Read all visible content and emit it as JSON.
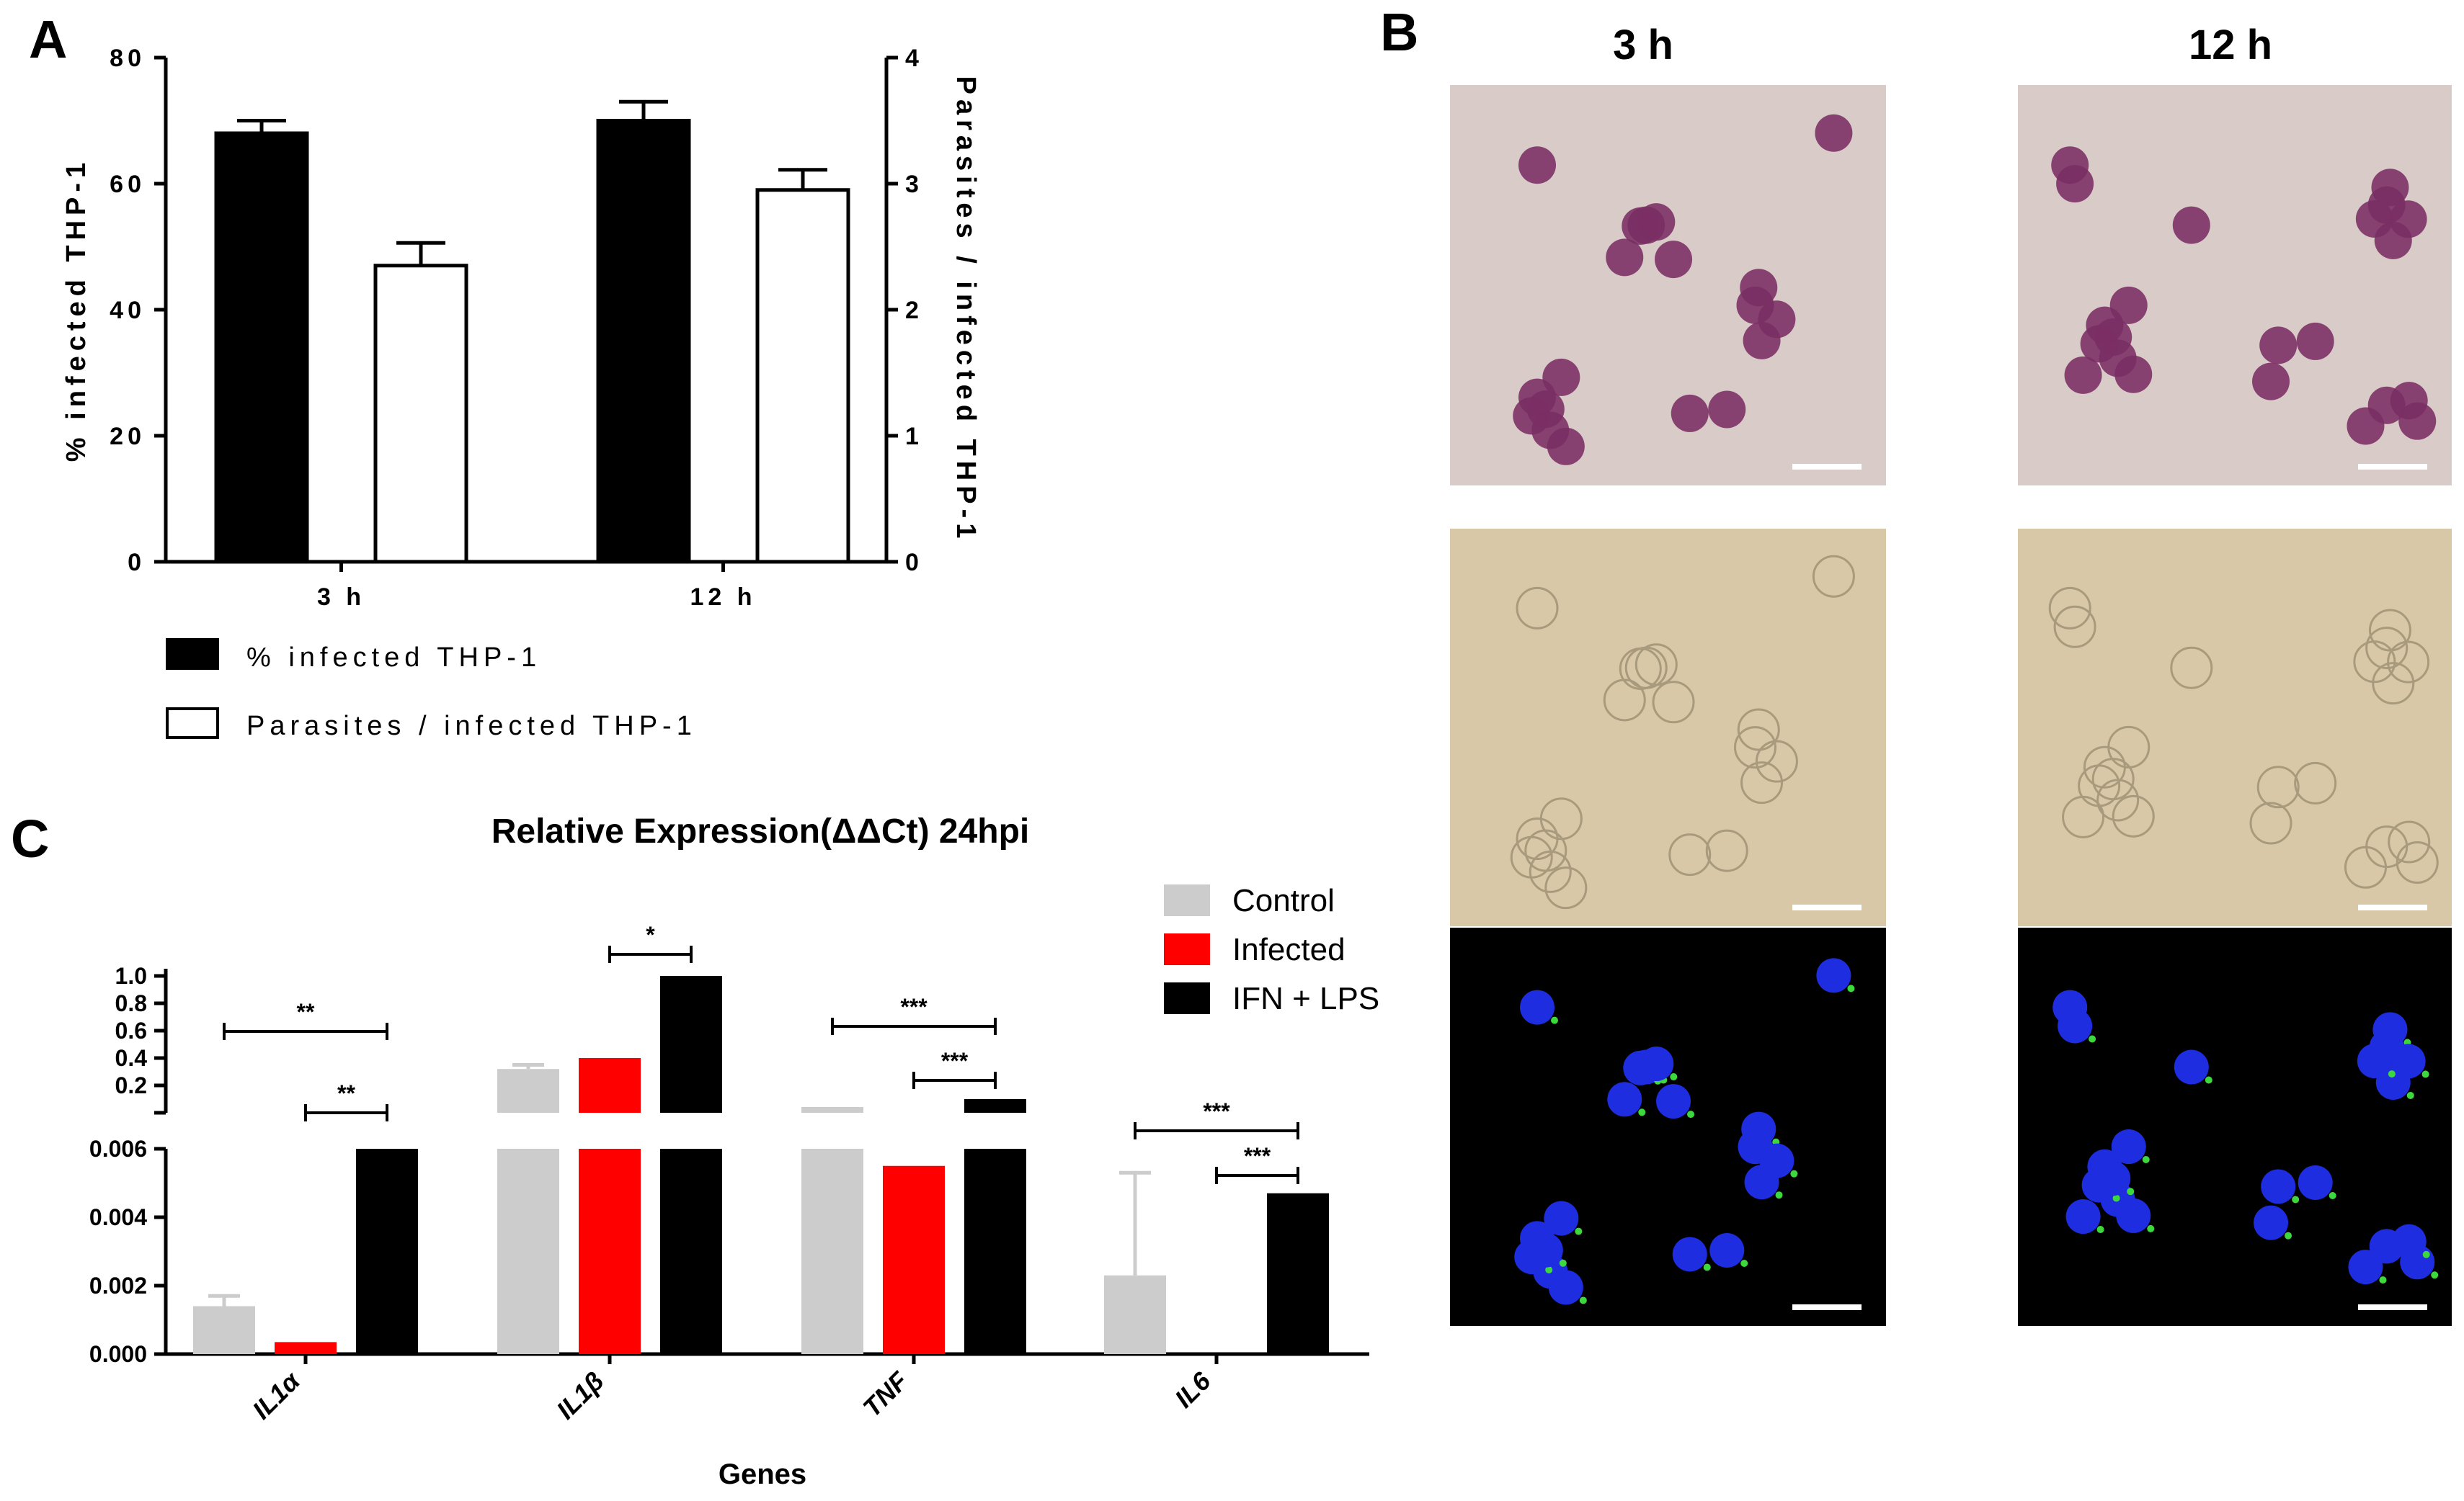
{
  "figure": {
    "panel_labels": [
      "A",
      "B",
      "C"
    ]
  },
  "colors": {
    "black": "#000000",
    "white": "#ffffff",
    "control_gray": "#cccccc",
    "infected_red": "#ff0000",
    "giemsa_bg": "#d9cbc8",
    "giemsa_cell": "#7a2e63",
    "brightfield_bg": "#d9c8a8",
    "fluor_nucleus": "#1e2de0",
    "fluor_parasite": "#3dd83d"
  },
  "panelB": {
    "column_titles": [
      "3 h",
      "12 h"
    ],
    "rows": [
      "giemsa",
      "brightfield",
      "fluorescence"
    ]
  },
  "chart_data": [
    {
      "type": "bar",
      "panel": "A",
      "categories": [
        "3 h",
        "12 h"
      ],
      "series": [
        {
          "name": "% infected THP-1",
          "axis": "left",
          "values": [
            68,
            70
          ],
          "errors": [
            2,
            3
          ],
          "fill": "#000000"
        },
        {
          "name": "Parasites / infected THP-1",
          "axis": "right",
          "values": [
            2.35,
            2.95
          ],
          "errors": [
            0.18,
            0.16
          ],
          "fill": "#ffffff"
        }
      ],
      "ylabel": "% infected THP-1",
      "ylim": [
        0,
        80
      ],
      "yticks": [
        "0",
        "20",
        "40",
        "60",
        "80"
      ],
      "y2label": "Parasites / infected THP-1",
      "y2lim": [
        0,
        4
      ],
      "y2ticks": [
        "0",
        "1",
        "2",
        "3",
        "4"
      ],
      "legend": [
        "% infected THP-1",
        "Parasites / infected THP-1"
      ],
      "legend_position": "bottom-left"
    },
    {
      "type": "bar",
      "panel": "C",
      "title": "Relative Expression(ΔΔCt) 24hpi",
      "xlabel": "Genes",
      "categories": [
        "IL1α",
        "IL1β",
        "TNF",
        "IL6"
      ],
      "series": [
        {
          "name": "Control",
          "values": [
            0.0014,
            0.32,
            0.007,
            0.0023
          ],
          "errors": [
            0.0003,
            0.03,
            0,
            0.003
          ]
        },
        {
          "name": "Infected",
          "values": [
            0.00035,
            0.4,
            0.0055,
            0
          ]
        },
        {
          "name": "IFN + LPS",
          "values": [
            0.006,
            1.0,
            0.1,
            0.0047
          ]
        }
      ],
      "y_lower_ticks": [
        "0.000",
        "0.002",
        "0.004",
        "0.006"
      ],
      "y_lower_range": [
        0,
        0.006
      ],
      "y_upper_ticks": [
        "0.2",
        "0.4",
        "0.6",
        "0.8",
        "1.0"
      ],
      "y_upper_range": [
        0,
        1.0
      ],
      "broken_axis": true,
      "legend_position": "top-right",
      "significance": [
        {
          "gene": "IL1α",
          "pair": [
            "Control",
            "IFN + LPS"
          ],
          "label": "**"
        },
        {
          "gene": "IL1α",
          "pair": [
            "Infected",
            "IFN + LPS"
          ],
          "label": "**"
        },
        {
          "gene": "IL1β",
          "pair": [
            "Infected",
            "IFN + LPS"
          ],
          "label": "*"
        },
        {
          "gene": "TNF",
          "pair": [
            "Control",
            "IFN + LPS"
          ],
          "label": "***"
        },
        {
          "gene": "TNF",
          "pair": [
            "Infected",
            "IFN + LPS"
          ],
          "label": "***"
        },
        {
          "gene": "IL6",
          "pair": [
            "Control",
            "IFN + LPS"
          ],
          "label": "***"
        },
        {
          "gene": "IL6",
          "pair": [
            "Infected",
            "IFN + LPS"
          ],
          "label": "***"
        }
      ]
    }
  ]
}
